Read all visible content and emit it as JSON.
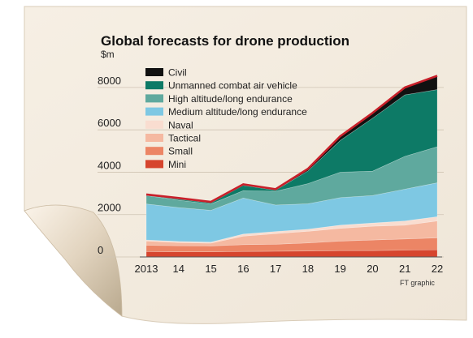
{
  "chart_data": {
    "type": "area",
    "title": "Global forecasts for drone production",
    "ylabel": "$m",
    "xlabel": "",
    "credit": "FT graphic",
    "categories": [
      "2013",
      "14",
      "15",
      "16",
      "17",
      "18",
      "19",
      "20",
      "21",
      "22"
    ],
    "ylim": [
      0,
      8800
    ],
    "yticks": [
      0,
      2000,
      4000,
      6000,
      8000
    ],
    "stacked": true,
    "grid": true,
    "legend_position": "top-left",
    "series": [
      {
        "name": "Mini",
        "color": "#d6452e",
        "values": [
          250,
          240,
          240,
          260,
          270,
          280,
          300,
          300,
          320,
          340
        ]
      },
      {
        "name": "Small",
        "color": "#ec8565",
        "values": [
          300,
          290,
          280,
          320,
          330,
          380,
          450,
          500,
          530,
          560
        ]
      },
      {
        "name": "Tactical",
        "color": "#f5b9a1",
        "values": [
          200,
          150,
          130,
          400,
          500,
          550,
          600,
          650,
          650,
          800
        ]
      },
      {
        "name": "Naval",
        "color": "#f9ddd0",
        "values": [
          50,
          50,
          50,
          100,
          100,
          100,
          150,
          150,
          200,
          200
        ]
      },
      {
        "name": "Medium altitude/long endurance",
        "color": "#7ec8e3",
        "values": [
          1700,
          1600,
          1500,
          1700,
          1250,
          1200,
          1300,
          1300,
          1500,
          1600
        ]
      },
      {
        "name": "High altitude/long endurance",
        "color": "#5fa99e",
        "values": [
          400,
          350,
          300,
          350,
          650,
          950,
          1200,
          1150,
          1550,
          1700
        ]
      },
      {
        "name": "Unmanned combat air vehicle",
        "color": "#0d7a66",
        "values": [
          0,
          50,
          50,
          250,
          50,
          600,
          1500,
          2500,
          2900,
          2700
        ]
      },
      {
        "name": "Civil",
        "color": "#111111",
        "values": [
          50,
          50,
          50,
          50,
          50,
          100,
          200,
          250,
          350,
          650
        ]
      }
    ],
    "total_line_color": "#c8202a"
  }
}
